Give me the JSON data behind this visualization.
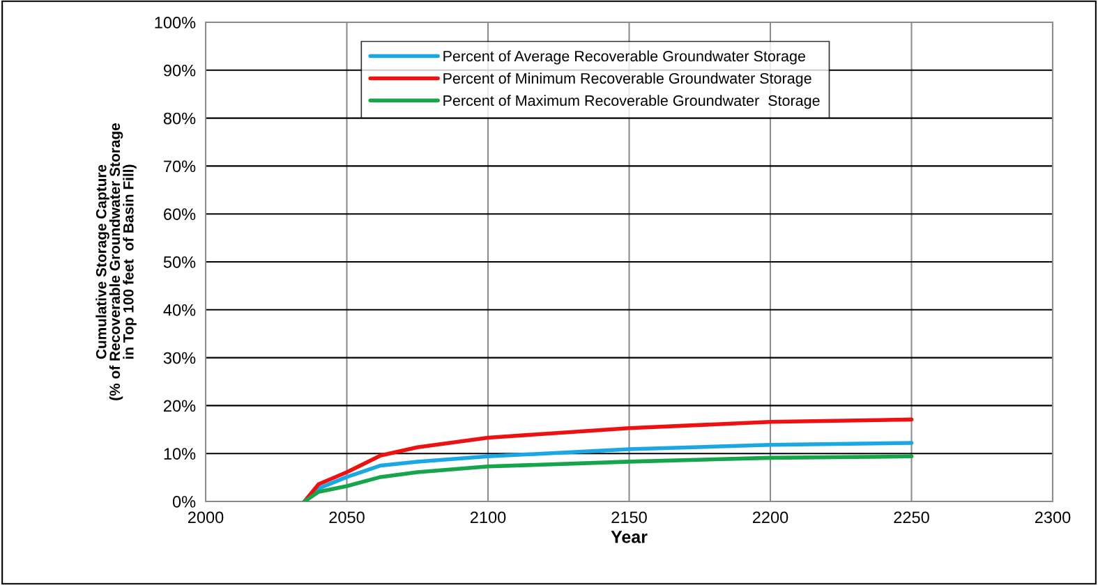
{
  "chart_data": {
    "type": "line",
    "xlabel": "Year",
    "ylabel": "Cumulative Storage Capture\n(% of Recoverable Groundwater Storage\nin Top 100 feet  of Basin Fill)",
    "x": [
      2035,
      2040,
      2050,
      2062,
      2075,
      2100,
      2150,
      2200,
      2250
    ],
    "series": [
      {
        "name": "Percent of Average Recoverable Groundwater Storage",
        "color": "#1aa7e4",
        "values": [
          0,
          2.7,
          5.1,
          7.5,
          8.3,
          9.4,
          10.9,
          11.8,
          12.2
        ]
      },
      {
        "name": "Percent of Minimum Recoverable Groundwater Storage",
        "color": "#ee1111",
        "values": [
          0,
          3.6,
          6.1,
          9.6,
          11.3,
          13.3,
          15.3,
          16.6,
          17.1
        ]
      },
      {
        "name": "Percent of Maximum Recoverable Groundwater  Storage",
        "color": "#16a54a",
        "values": [
          0,
          2.0,
          3.2,
          5.1,
          6.1,
          7.3,
          8.3,
          9.1,
          9.4
        ]
      }
    ],
    "xlim": [
      2000,
      2300
    ],
    "xticks": [
      2000,
      2050,
      2100,
      2150,
      2200,
      2250,
      2300
    ],
    "ylim": [
      0,
      100
    ],
    "yticks": [
      {
        "value": 0,
        "label": "0%"
      },
      {
        "value": 10,
        "label": "10%"
      },
      {
        "value": 20,
        "label": "20%"
      },
      {
        "value": 30,
        "label": "30%"
      },
      {
        "value": 40,
        "label": "40%"
      },
      {
        "value": 50,
        "label": "50%"
      },
      {
        "value": 60,
        "label": "60%"
      },
      {
        "value": 70,
        "label": "70%"
      },
      {
        "value": 80,
        "label": "80%"
      },
      {
        "value": 90,
        "label": "90%"
      },
      {
        "value": 100,
        "label": "100%"
      }
    ],
    "grid": true,
    "legend": "top",
    "marker": "none",
    "line_style": "solid"
  }
}
